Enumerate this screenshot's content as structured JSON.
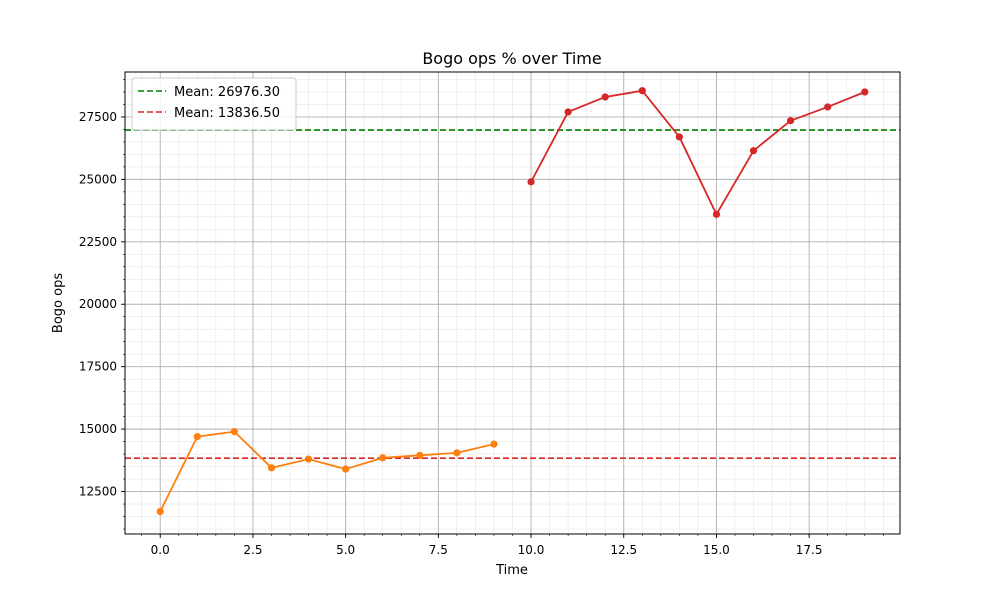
{
  "chart_data": {
    "type": "line",
    "title": "Bogo ops % over Time",
    "xlabel": "Time",
    "ylabel": "Bogo ops",
    "xlim": [
      -0.95,
      19.95
    ],
    "ylim": [
      10800,
      29300
    ],
    "xticks": [
      0.0,
      2.5,
      5.0,
      7.5,
      10.0,
      12.5,
      15.0,
      17.5
    ],
    "xtick_labels": [
      "0.0",
      "2.5",
      "5.0",
      "7.5",
      "10.0",
      "12.5",
      "15.0",
      "17.5"
    ],
    "yticks": [
      12500,
      15000,
      17500,
      20000,
      22500,
      25000,
      27500
    ],
    "ytick_labels": [
      "12500",
      "15000",
      "17500",
      "20000",
      "22500",
      "25000",
      "27500"
    ],
    "grid": true,
    "minor_grid": true,
    "legend_position": "top-left",
    "series": [
      {
        "color": "#ff7f0e",
        "x": [
          0,
          1,
          2,
          3,
          4,
          5,
          6,
          7,
          8,
          9
        ],
        "y": [
          11700,
          14700,
          14900,
          13450,
          13800,
          13400,
          13850,
          13950,
          14050,
          14400
        ]
      },
      {
        "color": "#d62728",
        "x": [
          10,
          11,
          12,
          13,
          14,
          15,
          16,
          17,
          18,
          19
        ],
        "y": [
          24900,
          27700,
          28300,
          28550,
          26700,
          23600,
          26150,
          27350,
          27900,
          28500
        ]
      }
    ],
    "hlines": [
      {
        "label": "Mean: 26976.30",
        "value": 26976.3,
        "color": "#008000"
      },
      {
        "label": "Mean: 13836.50",
        "value": 13836.5,
        "color": "#d62728"
      }
    ]
  }
}
